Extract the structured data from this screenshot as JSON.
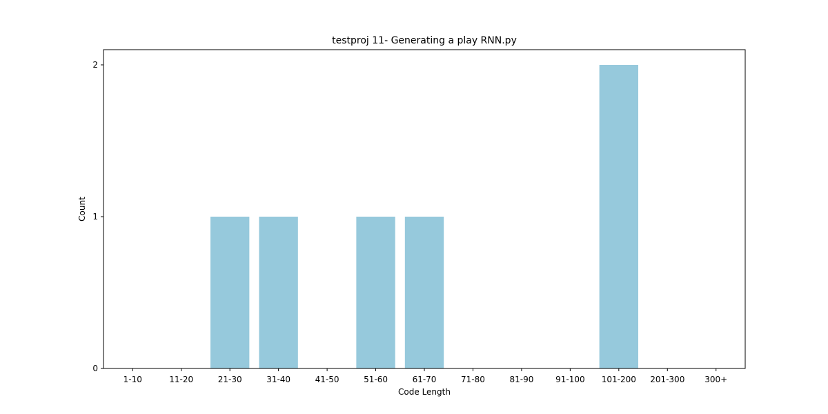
{
  "chart_data": {
    "type": "bar",
    "title": "testproj 11- Generating a play RNN.py",
    "xlabel": "Code Length",
    "ylabel": "Count",
    "categories": [
      "1-10",
      "11-20",
      "21-30",
      "31-40",
      "41-50",
      "51-60",
      "61-70",
      "71-80",
      "81-90",
      "91-100",
      "101-200",
      "201-300",
      "300+"
    ],
    "values": [
      0,
      0,
      1,
      1,
      0,
      1,
      1,
      0,
      0,
      0,
      2,
      0,
      0
    ],
    "ylim": [
      0,
      2.1
    ],
    "yticks": [
      0,
      1,
      2
    ],
    "bar_color": "#96c9dc",
    "grid": false,
    "legend": "none"
  }
}
